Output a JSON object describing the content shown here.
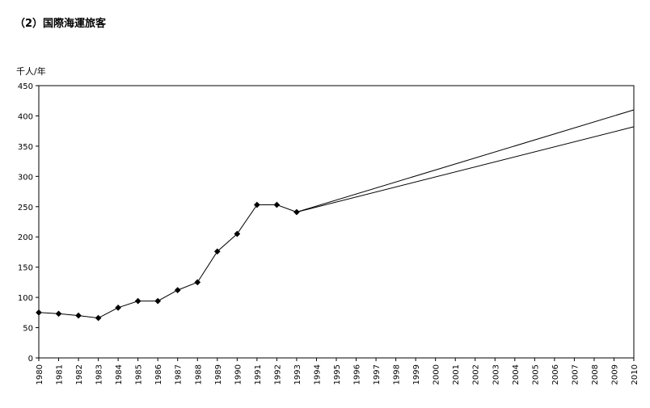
{
  "title": "（2）国際海運旅客",
  "chart_data": {
    "type": "line",
    "title": "（2）国際海運旅客",
    "ylabel": "千人/年",
    "xlabel": "",
    "ylim": [
      0,
      450
    ],
    "yticks": [
      0,
      50,
      100,
      150,
      200,
      250,
      300,
      350,
      400,
      450
    ],
    "categories": [
      "1980",
      "1981",
      "1982",
      "1983",
      "1984",
      "1985",
      "1986",
      "1987",
      "1988",
      "1989",
      "1990",
      "1991",
      "1992",
      "1993",
      "1994",
      "1995",
      "1996",
      "1997",
      "1998",
      "1999",
      "2000",
      "2001",
      "2002",
      "2003",
      "2004",
      "2005",
      "2006",
      "2007",
      "2008",
      "2009",
      "2010"
    ],
    "grid": false,
    "legend": "none",
    "series": [
      {
        "markers": true,
        "values": [
          75,
          73,
          70,
          66,
          83,
          94,
          94,
          112,
          125,
          176,
          205,
          253,
          253,
          241,
          null,
          null,
          null,
          null,
          null,
          null,
          null,
          null,
          null,
          null,
          null,
          null,
          null,
          null,
          null,
          null,
          null
        ]
      },
      {
        "markers": false,
        "values": [
          null,
          null,
          null,
          null,
          null,
          null,
          null,
          null,
          null,
          null,
          null,
          null,
          null,
          241,
          null,
          null,
          null,
          null,
          null,
          null,
          null,
          null,
          null,
          null,
          null,
          null,
          null,
          null,
          null,
          null,
          410
        ]
      },
      {
        "markers": false,
        "values": [
          null,
          null,
          null,
          null,
          null,
          null,
          null,
          null,
          null,
          null,
          null,
          null,
          null,
          241,
          null,
          null,
          null,
          null,
          null,
          null,
          null,
          null,
          null,
          null,
          null,
          null,
          null,
          null,
          null,
          null,
          382
        ]
      }
    ]
  }
}
